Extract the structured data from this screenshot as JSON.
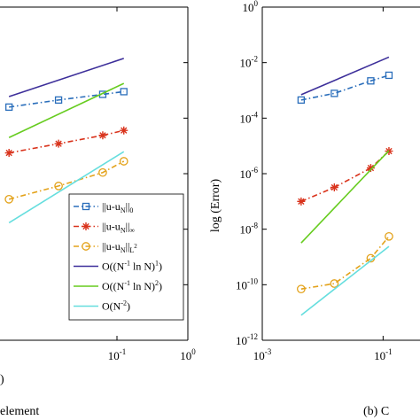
{
  "chart_data": [
    {
      "type": "line",
      "title": "",
      "caption": "element",
      "xlabel": ")",
      "ylabel": "",
      "x_scale": "log",
      "y_scale": "log",
      "grid": false,
      "x_ticks": [
        {
          "value": 0.1,
          "base": "10",
          "exp": "-1"
        },
        {
          "value": 1,
          "base": "10",
          "exp": "0"
        }
      ],
      "legend": {
        "position": "lower-right",
        "entries": [
          {
            "series": "inf0",
            "main": "||u-u",
            "sub1": "N",
            "tail": "||",
            "sub2": "0"
          },
          {
            "series": "infinf",
            "main": "||u-u",
            "sub1": "N",
            "tail": "||",
            "sub2": "∞"
          },
          {
            "series": "infL2",
            "main": "||u-u",
            "sub1": "N",
            "tail": "||",
            "sub2": "L",
            "sup2": "2"
          },
          {
            "series": "rate1",
            "main": "O((N",
            "sup1": "-1",
            "mid": " ln N)",
            "sup2": "1",
            "tail": ")"
          },
          {
            "series": "rate2",
            "main": "O((N",
            "sup1": "-1",
            "mid": " ln N)",
            "sup2": "2",
            "tail": ")"
          },
          {
            "series": "rate3",
            "main": "O(N",
            "sup1": "-2",
            "tail": ")"
          }
        ]
      },
      "series": [
        {
          "id": "rate1",
          "color": "#3d2f9a",
          "marker": "none",
          "dash": "solid",
          "points": [
            [
              0.003,
              0.0006
            ],
            [
              0.125,
              0.0142
            ]
          ]
        },
        {
          "id": "inf0",
          "color": "#2a6ebb",
          "marker": "square",
          "dash": "dashdot",
          "points": [
            [
              0.003,
              0.00025
            ],
            [
              0.015,
              0.00045
            ],
            [
              0.063,
              0.00072
            ],
            [
              0.125,
              0.0009
            ]
          ]
        },
        {
          "id": "rate2",
          "color": "#66cc1f",
          "marker": "none",
          "dash": "solid",
          "points": [
            [
              0.003,
              2e-05
            ],
            [
              0.125,
              0.00178
            ]
          ]
        },
        {
          "id": "infinf",
          "color": "#d9331c",
          "marker": "star",
          "dash": "dashdot",
          "points": [
            [
              0.003,
              5.6e-06
            ],
            [
              0.015,
              1.2e-05
            ],
            [
              0.063,
              2.4e-05
            ],
            [
              0.125,
              3.6e-05
            ]
          ]
        },
        {
          "id": "infL2",
          "color": "#e3a21a",
          "marker": "circle",
          "dash": "dashdot",
          "points": [
            [
              0.003,
              1.2e-07
            ],
            [
              0.015,
              3.6e-07
            ],
            [
              0.063,
              1.1e-06
            ],
            [
              0.125,
              2.8e-06
            ]
          ]
        },
        {
          "id": "rate3",
          "color": "#66dede",
          "marker": "none",
          "dash": "solid",
          "points": [
            [
              0.003,
              1.7e-08
            ],
            [
              0.125,
              6.2e-06
            ]
          ]
        }
      ]
    },
    {
      "type": "line",
      "title": "",
      "caption": "(b) C",
      "xlabel": "",
      "ylabel": "log (Error)",
      "x_scale": "log",
      "y_scale": "log",
      "ylim": [
        1e-12,
        1
      ],
      "grid": false,
      "x_ticks": [
        {
          "value": 0.001,
          "base": "10",
          "exp": "-3"
        },
        {
          "value": 0.1,
          "base": "10",
          "exp": "-1"
        }
      ],
      "y_ticks": [
        {
          "value": 1,
          "base": "10",
          "exp": "0"
        },
        {
          "value": 0.01,
          "base": "10",
          "exp": "-2"
        },
        {
          "value": 0.0001,
          "base": "10",
          "exp": "-4"
        },
        {
          "value": 1e-06,
          "base": "10",
          "exp": "-6"
        },
        {
          "value": 1e-08,
          "base": "10",
          "exp": "-8"
        },
        {
          "value": 1e-10,
          "base": "10",
          "exp": "-10"
        },
        {
          "value": 1e-12,
          "base": "10",
          "exp": "-12"
        }
      ],
      "series": [
        {
          "id": "rate1",
          "color": "#3d2f9a",
          "marker": "none",
          "dash": "solid",
          "points": [
            [
              0.0044,
              0.0007
            ],
            [
              0.125,
              0.0158
            ]
          ]
        },
        {
          "id": "inf0",
          "color": "#2a6ebb",
          "marker": "square",
          "dash": "dashdot",
          "points": [
            [
              0.0044,
              0.00045
            ],
            [
              0.0156,
              0.00078
            ],
            [
              0.0625,
              0.0022
            ],
            [
              0.125,
              0.0035
            ]
          ]
        },
        {
          "id": "infinf",
          "color": "#d9331c",
          "marker": "star",
          "dash": "dashdot",
          "points": [
            [
              0.0044,
              1e-07
            ],
            [
              0.0156,
              3.2e-07
            ],
            [
              0.0625,
              1.6e-06
            ],
            [
              0.125,
              6.5e-06
            ]
          ]
        },
        {
          "id": "rate2",
          "color": "#66cc1f",
          "marker": "none",
          "dash": "solid",
          "points": [
            [
              0.0044,
              3.2e-09
            ],
            [
              0.125,
              6.8e-06
            ]
          ]
        },
        {
          "id": "infL2",
          "color": "#e3a21a",
          "marker": "circle",
          "dash": "dashdot",
          "points": [
            [
              0.0044,
              7e-11
            ],
            [
              0.0156,
              1.1e-10
            ],
            [
              0.0625,
              9e-10
            ],
            [
              0.125,
              5.5e-09
            ]
          ]
        },
        {
          "id": "rate3",
          "color": "#66dede",
          "marker": "none",
          "dash": "solid",
          "points": [
            [
              0.0044,
              8e-12
            ],
            [
              0.125,
              2.4e-09
            ]
          ]
        }
      ]
    }
  ]
}
